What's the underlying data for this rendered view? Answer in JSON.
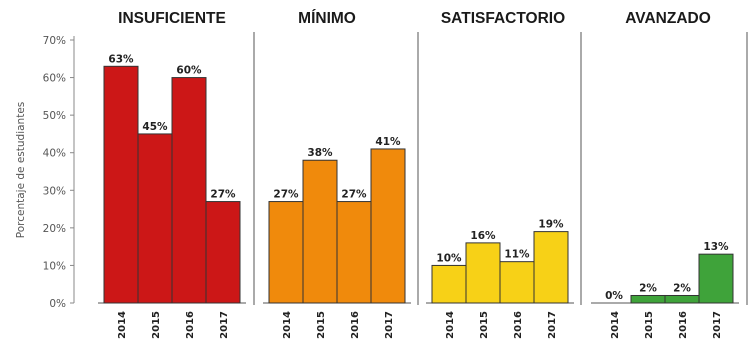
{
  "chart_data": {
    "type": "bar",
    "ylabel": "Porcentaje de estudiantes",
    "ylim": [
      0,
      70
    ],
    "yticks": [
      0,
      10,
      20,
      30,
      40,
      50,
      60,
      70
    ],
    "ytick_labels": [
      "0%",
      "10%",
      "20%",
      "30%",
      "40%",
      "50%",
      "60%",
      "70%"
    ],
    "categories": [
      "2014",
      "2015",
      "2016",
      "2017"
    ],
    "grid": false,
    "panels": [
      {
        "name": "INSUFICIENTE",
        "color": "#cc1717",
        "values": [
          63,
          45,
          60,
          27
        ],
        "labels": [
          "63%",
          "45%",
          "60%",
          "27%"
        ]
      },
      {
        "name": "MÍNIMO",
        "color": "#f08a0c",
        "values": [
          27,
          38,
          27,
          41
        ],
        "labels": [
          "27%",
          "38%",
          "27%",
          "41%"
        ]
      },
      {
        "name": "SATISFACTORIO",
        "color": "#f7d117",
        "values": [
          10,
          16,
          11,
          19
        ],
        "labels": [
          "10%",
          "16%",
          "11%",
          "19%"
        ]
      },
      {
        "name": "AVANZADO",
        "color": "#3fa33a",
        "values": [
          0,
          2,
          2,
          13
        ],
        "labels": [
          "0%",
          "2%",
          "2%",
          "13%"
        ]
      }
    ]
  }
}
